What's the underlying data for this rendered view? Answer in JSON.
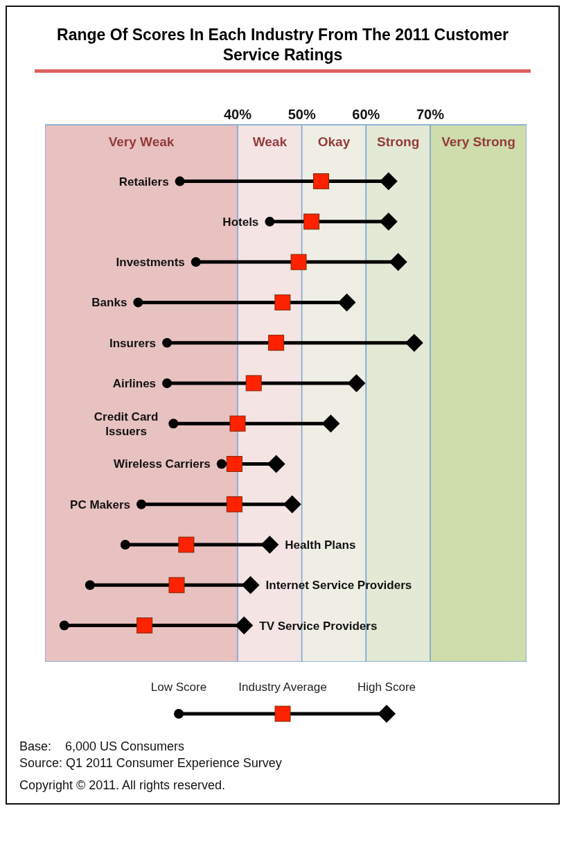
{
  "chart_data": {
    "type": "scatter",
    "orientation": "horizontal",
    "title": "Range Of Scores In Each Industry From The 2011 Customer Service Ratings",
    "categories": [
      "Retailers",
      "Hotels",
      "Investments",
      "Banks",
      "Insurers",
      "Airlines",
      "Credit Card Issuers",
      "Wireless Carriers",
      "PC Makers",
      "Health Plans",
      "Internet Service Providers",
      "TV Service Providers"
    ],
    "series": [
      {
        "name": "Low Score",
        "color": "#000000",
        "marker": "circle",
        "values": [
          31,
          45,
          33.5,
          24.5,
          29,
          29,
          30,
          37.5,
          25,
          22.5,
          17,
          13
        ]
      },
      {
        "name": "Industry Average",
        "color": "#ff2200",
        "marker": "square",
        "values": [
          53,
          51.5,
          49.5,
          47,
          46,
          42.5,
          40,
          39.5,
          39.5,
          32,
          30.5,
          25.5
        ]
      },
      {
        "name": "High Score",
        "color": "#000000",
        "marker": "diamond",
        "values": [
          63.5,
          63.5,
          65,
          57,
          67.5,
          58.5,
          54.5,
          46,
          48.5,
          45,
          42,
          41
        ]
      }
    ],
    "xlim": [
      10,
      85
    ],
    "xticks": [
      {
        "value": 40,
        "label": "40%"
      },
      {
        "value": 50,
        "label": "50%"
      },
      {
        "value": 60,
        "label": "60%"
      },
      {
        "value": 70,
        "label": "70%"
      }
    ],
    "bands": [
      {
        "axis": "x",
        "from": 10,
        "to": 40,
        "label": "Very Weak",
        "color": "#e8c1c1"
      },
      {
        "axis": "x",
        "from": 40,
        "to": 50,
        "label": "Weak",
        "color": "#f4e4e4"
      },
      {
        "axis": "x",
        "from": 50,
        "to": 60,
        "label": "Okay",
        "color": "#eeeee4"
      },
      {
        "axis": "x",
        "from": 60,
        "to": 70,
        "label": "Strong",
        "color": "#e2e9d5"
      },
      {
        "axis": "x",
        "from": 70,
        "to": 85,
        "label": "Very Strong",
        "color": "#ceddab"
      }
    ],
    "grid": false,
    "legend": "bottom",
    "annotations": [
      "Base:    6,000 US Consumers",
      "Source: Q1 2011 Consumer Experience Survey",
      "Copyright © 2011. All rights reserved."
    ]
  }
}
